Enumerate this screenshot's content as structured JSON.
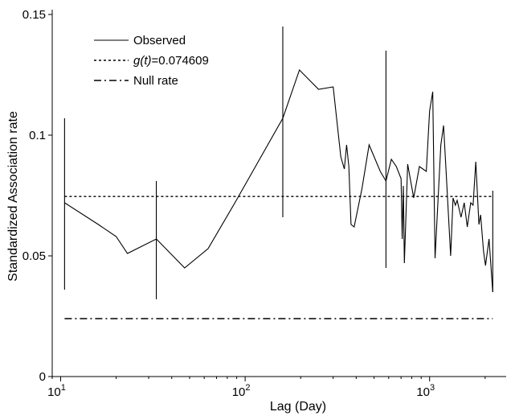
{
  "chart_data": {
    "type": "line",
    "title": "",
    "xlabel": "Lag (Day)",
    "ylabel": "Standardized Association rate",
    "xscale": "log",
    "xlim": [
      9,
      2600
    ],
    "ylim": [
      0,
      0.152
    ],
    "grid": false,
    "legend_position": "top-left",
    "x_ticks": [
      {
        "value": 10,
        "base": "10",
        "exp": "1"
      },
      {
        "value": 100,
        "base": "10",
        "exp": "2"
      },
      {
        "value": 1000,
        "base": "10",
        "exp": "3"
      }
    ],
    "y_ticks": [
      {
        "value": 0,
        "label": "0"
      },
      {
        "value": 0.05,
        "label": "0.05"
      },
      {
        "value": 0.1,
        "label": "0.1"
      },
      {
        "value": 0.15,
        "label": "0.15"
      }
    ],
    "legend": [
      {
        "label": "Observed",
        "style": "solid"
      },
      {
        "label_italic": "g(t)",
        "label": "=0.074609",
        "style": "dotted"
      },
      {
        "label": "Null rate",
        "style": "dashdot"
      }
    ],
    "series": [
      {
        "name": "Observed",
        "style": "solid",
        "color": "#000000",
        "x": [
          10.5,
          16,
          20,
          23,
          33,
          47,
          63,
          88,
          160,
          197,
          250,
          300,
          330,
          345,
          355,
          365,
          375,
          390,
          430,
          470,
          540,
          580,
          620,
          660,
          700,
          710,
          720,
          730,
          760,
          820,
          880,
          960,
          1000,
          1040,
          1070,
          1150,
          1190,
          1230,
          1300,
          1340,
          1380,
          1410,
          1480,
          1540,
          1600,
          1670,
          1720,
          1780,
          1850,
          1890,
          1960,
          2010,
          2100,
          2200
        ],
        "y": [
          0.072,
          0.063,
          0.058,
          0.051,
          0.057,
          0.045,
          0.053,
          0.072,
          0.107,
          0.127,
          0.119,
          0.12,
          0.091,
          0.086,
          0.096,
          0.087,
          0.063,
          0.062,
          0.078,
          0.096,
          0.085,
          0.081,
          0.09,
          0.087,
          0.082,
          0.057,
          0.079,
          0.047,
          0.088,
          0.074,
          0.087,
          0.085,
          0.11,
          0.118,
          0.049,
          0.096,
          0.104,
          0.084,
          0.05,
          0.074,
          0.071,
          0.073,
          0.066,
          0.072,
          0.062,
          0.072,
          0.071,
          0.089,
          0.063,
          0.067,
          0.052,
          0.046,
          0.057,
          0.035
        ]
      },
      {
        "name": "g(t)=0.074609",
        "style": "dotted",
        "color": "#000000",
        "x": [
          10.5,
          2200
        ],
        "y": [
          0.074609,
          0.074609
        ]
      },
      {
        "name": "Null rate",
        "style": "dashdot",
        "color": "#000000",
        "x": [
          10.5,
          2200
        ],
        "y": [
          0.024,
          0.024
        ]
      }
    ],
    "error_bars": [
      {
        "x": 10.5,
        "low": 0.036,
        "high": 0.107
      },
      {
        "x": 33,
        "low": 0.032,
        "high": 0.081
      },
      {
        "x": 160,
        "low": 0.066,
        "high": 0.145
      },
      {
        "x": 580,
        "low": 0.045,
        "high": 0.135
      },
      {
        "x": 2200,
        "low": 0.035,
        "high": 0.077
      }
    ]
  }
}
